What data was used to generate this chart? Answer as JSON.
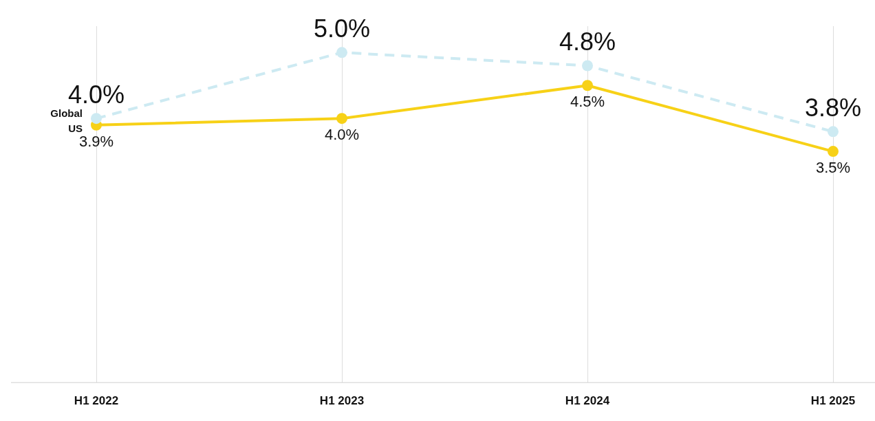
{
  "chart_data": {
    "type": "line",
    "categories": [
      "H1 2022",
      "H1 2023",
      "H1 2024",
      "H1 2025"
    ],
    "series": [
      {
        "name": "Global",
        "color": "#cdeaf2",
        "values": [
          4.0,
          5.0,
          4.8,
          3.8
        ],
        "value_labels": [
          "4.0%",
          "5.0%",
          "4.8%",
          "3.8%"
        ],
        "line_style": "dashed"
      },
      {
        "name": "US",
        "color": "#f7d117",
        "values": [
          3.9,
          4.0,
          4.5,
          3.5
        ],
        "value_labels": [
          "3.9%",
          "4.0%",
          "4.5%",
          "3.5%"
        ],
        "line_style": "solid"
      }
    ],
    "ylim": [
      0,
      5.4
    ],
    "grid": "x",
    "legend": false,
    "marker": "circle"
  }
}
